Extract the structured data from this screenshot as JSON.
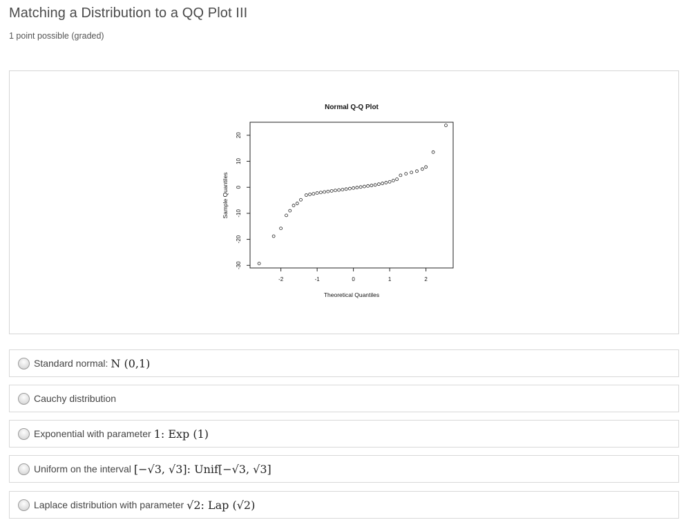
{
  "page": {
    "title": "Matching a Distribution to a QQ Plot III",
    "subtitle": "1 point possible (graded)"
  },
  "chart_data": {
    "type": "scatter",
    "title": "Normal Q-Q Plot",
    "xlabel": "Theoretical Quantiles",
    "ylabel": "Sample Quantiles",
    "xlim": [
      -2.85,
      2.75
    ],
    "ylim": [
      -31,
      25
    ],
    "xticks": [
      -2,
      -1,
      0,
      1,
      2
    ],
    "yticks": [
      -30,
      -20,
      -10,
      0,
      10,
      20
    ],
    "xtick_labels": [
      "-2",
      "-1",
      "0",
      "1",
      "2"
    ],
    "ytick_labels": [
      "-30",
      "-20",
      "-10",
      "0",
      "10",
      "20"
    ],
    "grid": false,
    "points": [
      [
        -2.6,
        -29.3
      ],
      [
        -2.2,
        -18.8
      ],
      [
        -2.0,
        -15.8
      ],
      [
        -1.85,
        -10.8
      ],
      [
        -1.75,
        -9.0
      ],
      [
        -1.65,
        -7.0
      ],
      [
        -1.55,
        -6.2
      ],
      [
        -1.45,
        -4.8
      ],
      [
        -1.3,
        -3.0
      ],
      [
        -1.2,
        -2.7
      ],
      [
        -1.1,
        -2.5
      ],
      [
        -1.0,
        -2.2
      ],
      [
        -0.9,
        -2.0
      ],
      [
        -0.8,
        -1.8
      ],
      [
        -0.7,
        -1.6
      ],
      [
        -0.6,
        -1.4
      ],
      [
        -0.5,
        -1.2
      ],
      [
        -0.4,
        -1.05
      ],
      [
        -0.3,
        -0.9
      ],
      [
        -0.2,
        -0.7
      ],
      [
        -0.1,
        -0.5
      ],
      [
        0.0,
        -0.3
      ],
      [
        0.1,
        -0.1
      ],
      [
        0.2,
        0.1
      ],
      [
        0.3,
        0.3
      ],
      [
        0.4,
        0.5
      ],
      [
        0.5,
        0.7
      ],
      [
        0.6,
        0.9
      ],
      [
        0.7,
        1.2
      ],
      [
        0.8,
        1.5
      ],
      [
        0.9,
        1.8
      ],
      [
        1.0,
        2.1
      ],
      [
        1.1,
        2.6
      ],
      [
        1.2,
        3.1
      ],
      [
        1.3,
        4.6
      ],
      [
        1.45,
        5.2
      ],
      [
        1.6,
        5.7
      ],
      [
        1.75,
        6.2
      ],
      [
        1.9,
        7.0
      ],
      [
        2.0,
        7.8
      ],
      [
        2.2,
        13.5
      ],
      [
        2.55,
        23.8
      ]
    ]
  },
  "options": [
    {
      "label": "Standard normal:",
      "math": "N (0,1)"
    },
    {
      "label": "Cauchy distribution",
      "math": ""
    },
    {
      "label": "Exponential with parameter",
      "math": "1:  Exp (1)"
    },
    {
      "label": "Uniform on the interval",
      "math": "[−√3, √3]:  Unif[−√3, √3]"
    },
    {
      "label": "Laplace distribution with parameter",
      "math": "√2:  Lap (√2)"
    }
  ]
}
